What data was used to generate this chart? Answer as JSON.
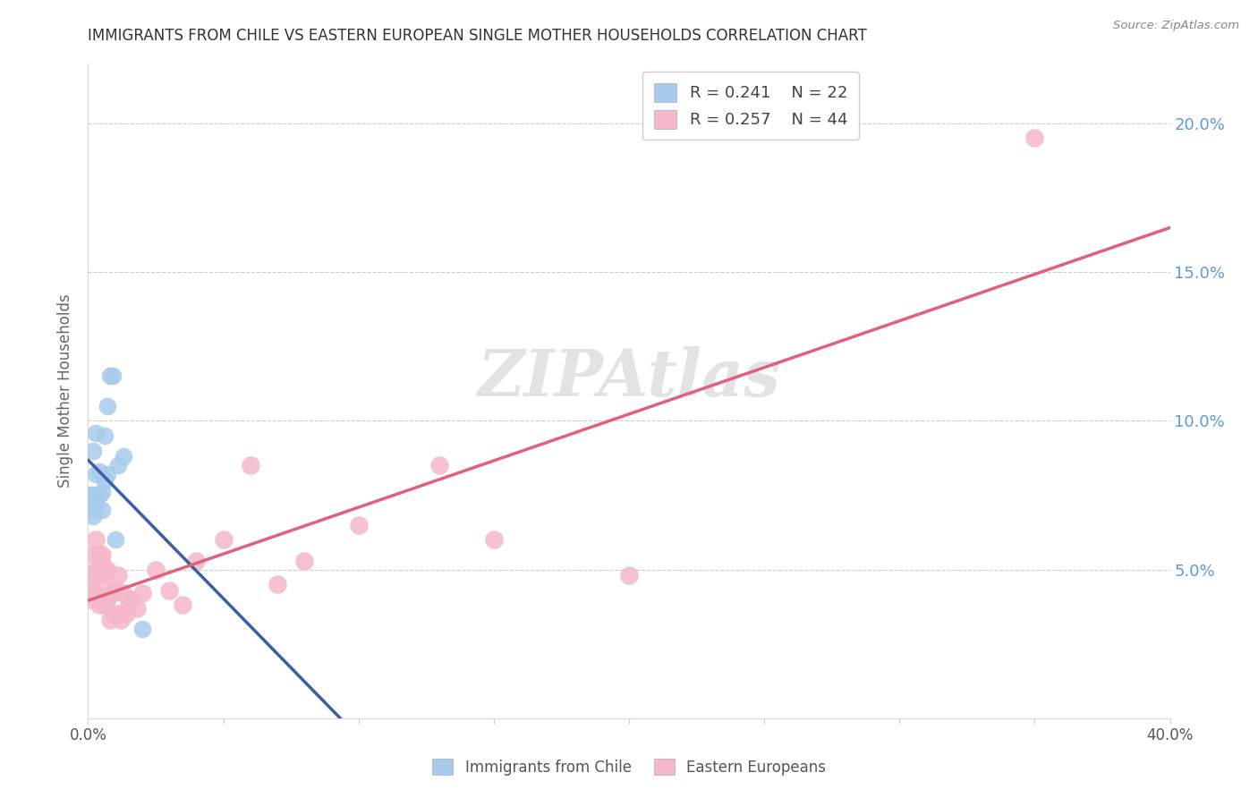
{
  "title": "IMMIGRANTS FROM CHILE VS EASTERN EUROPEAN SINGLE MOTHER HOUSEHOLDS CORRELATION CHART",
  "source": "Source: ZipAtlas.com",
  "ylabel": "Single Mother Households",
  "xlim": [
    0.0,
    0.4
  ],
  "ylim": [
    0.0,
    0.22
  ],
  "yticks": [
    0.05,
    0.1,
    0.15,
    0.2
  ],
  "ytick_labels": [
    "5.0%",
    "10.0%",
    "15.0%",
    "20.0%"
  ],
  "xticks": [
    0.0,
    0.05,
    0.1,
    0.15,
    0.2,
    0.25,
    0.3,
    0.35,
    0.4
  ],
  "xtick_labels": [
    "0.0%",
    "",
    "",
    "",
    "",
    "",
    "",
    "",
    "40.0%"
  ],
  "legend_R1": "0.241",
  "legend_N1": "22",
  "legend_R2": "0.257",
  "legend_N2": "44",
  "legend_label1": "Immigrants from Chile",
  "legend_label2": "Eastern Europeans",
  "blue_scatter_color": "#A8CAEC",
  "pink_scatter_color": "#F5B8C8",
  "blue_line_color": "#3A5EA8",
  "pink_line_color": "#E0607E",
  "dashed_line_color": "#AAAAAA",
  "title_color": "#333333",
  "right_tick_color": "#5B9BD5",
  "watermark_text": "ZIPAtlas",
  "chile_x": [
    0.001,
    0.001,
    0.002,
    0.002,
    0.002,
    0.003,
    0.003,
    0.003,
    0.004,
    0.004,
    0.005,
    0.005,
    0.006,
    0.006,
    0.007,
    0.007,
    0.008,
    0.009,
    0.01,
    0.011,
    0.013,
    0.02
  ],
  "chile_y": [
    0.07,
    0.075,
    0.068,
    0.075,
    0.09,
    0.072,
    0.082,
    0.096,
    0.075,
    0.083,
    0.07,
    0.076,
    0.095,
    0.08,
    0.105,
    0.082,
    0.115,
    0.115,
    0.06,
    0.085,
    0.088,
    0.03
  ],
  "eastern_x": [
    0.001,
    0.001,
    0.002,
    0.002,
    0.003,
    0.003,
    0.003,
    0.004,
    0.004,
    0.004,
    0.005,
    0.005,
    0.005,
    0.006,
    0.006,
    0.007,
    0.007,
    0.008,
    0.008,
    0.009,
    0.009,
    0.01,
    0.011,
    0.011,
    0.012,
    0.013,
    0.014,
    0.015,
    0.016,
    0.018,
    0.02,
    0.025,
    0.03,
    0.035,
    0.04,
    0.05,
    0.06,
    0.07,
    0.08,
    0.1,
    0.13,
    0.15,
    0.2,
    0.35
  ],
  "eastern_y": [
    0.04,
    0.048,
    0.045,
    0.055,
    0.042,
    0.05,
    0.06,
    0.038,
    0.048,
    0.055,
    0.04,
    0.052,
    0.055,
    0.038,
    0.048,
    0.04,
    0.05,
    0.033,
    0.043,
    0.035,
    0.042,
    0.043,
    0.035,
    0.048,
    0.033,
    0.042,
    0.035,
    0.038,
    0.04,
    0.037,
    0.042,
    0.05,
    0.043,
    0.038,
    0.053,
    0.06,
    0.085,
    0.045,
    0.053,
    0.065,
    0.085,
    0.06,
    0.048,
    0.195
  ],
  "chile_line_x0": 0.0,
  "chile_line_x1": 0.105,
  "dashed_line_x0": 0.065,
  "dashed_line_x1": 0.4,
  "pink_line_x0": 0.0,
  "pink_line_x1": 0.4
}
